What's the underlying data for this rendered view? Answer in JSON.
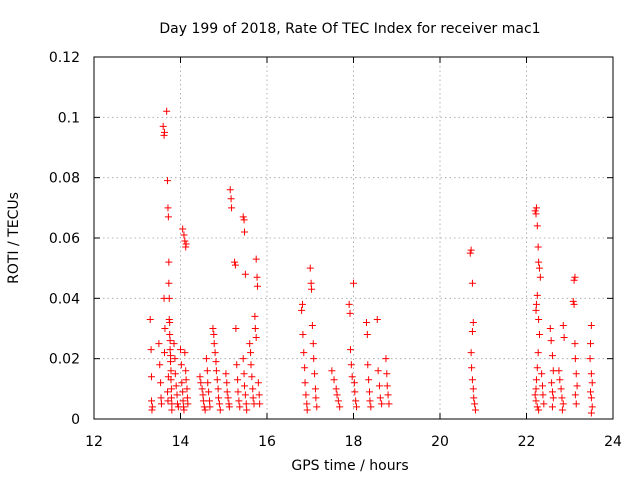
{
  "chart_data": {
    "type": "scatter",
    "title": "Day 199 of 2018, Rate Of TEC Index for receiver mac1",
    "xlabel": "GPS time / hours",
    "ylabel": "ROTI / TECUs",
    "xlim": [
      12,
      24
    ],
    "ylim": [
      0,
      0.12
    ],
    "grid": true,
    "marker": "plus",
    "color": "#ff0000",
    "x_ticks": [
      12,
      14,
      16,
      18,
      20,
      22,
      24
    ],
    "y_ticks": [
      0,
      0.02,
      0.04,
      0.06,
      0.08,
      0.1,
      0.12
    ],
    "x_tick_labels": [
      "12",
      "14",
      "16",
      "18",
      "20",
      "22",
      "24"
    ],
    "y_tick_labels": [
      "0",
      "0.02",
      "0.04",
      "0.06",
      "0.08",
      "0.1",
      "0.12"
    ],
    "series": [
      {
        "name": "ROTI",
        "points": [
          [
            13.3,
            0.033
          ],
          [
            13.32,
            0.023
          ],
          [
            13.33,
            0.014
          ],
          [
            13.33,
            0.006
          ],
          [
            13.35,
            0.004
          ],
          [
            13.34,
            0.003
          ],
          [
            13.5,
            0.025
          ],
          [
            13.52,
            0.018
          ],
          [
            13.54,
            0.012
          ],
          [
            13.55,
            0.007
          ],
          [
            13.56,
            0.005
          ],
          [
            13.6,
            0.097
          ],
          [
            13.62,
            0.094
          ],
          [
            13.63,
            0.095
          ],
          [
            13.62,
            0.04
          ],
          [
            13.64,
            0.03
          ],
          [
            13.63,
            0.022
          ],
          [
            13.68,
            0.102
          ],
          [
            13.7,
            0.079
          ],
          [
            13.71,
            0.07
          ],
          [
            13.72,
            0.067
          ],
          [
            13.73,
            0.052
          ],
          [
            13.73,
            0.045
          ],
          [
            13.74,
            0.04
          ],
          [
            13.74,
            0.033
          ],
          [
            13.75,
            0.032
          ],
          [
            13.75,
            0.028
          ],
          [
            13.76,
            0.026
          ],
          [
            13.76,
            0.023
          ],
          [
            13.77,
            0.021
          ],
          [
            13.77,
            0.019
          ],
          [
            13.78,
            0.016
          ],
          [
            13.78,
            0.013
          ],
          [
            13.79,
            0.01
          ],
          [
            13.79,
            0.007
          ],
          [
            13.8,
            0.005
          ],
          [
            13.8,
            0.003
          ],
          [
            13.72,
            0.014
          ],
          [
            13.7,
            0.009
          ],
          [
            13.71,
            0.006
          ],
          [
            13.85,
            0.025
          ],
          [
            13.87,
            0.02
          ],
          [
            13.88,
            0.015
          ],
          [
            13.9,
            0.011
          ],
          [
            13.92,
            0.008
          ],
          [
            13.93,
            0.005
          ],
          [
            13.95,
            0.004
          ],
          [
            14.0,
            0.023
          ],
          [
            14.02,
            0.018
          ],
          [
            14.03,
            0.012
          ],
          [
            14.05,
            0.009
          ],
          [
            14.06,
            0.006
          ],
          [
            14.07,
            0.004
          ],
          [
            14.08,
            0.003
          ],
          [
            14.05,
            0.063
          ],
          [
            14.08,
            0.061
          ],
          [
            14.1,
            0.059
          ],
          [
            14.12,
            0.057
          ],
          [
            14.13,
            0.058
          ],
          [
            14.1,
            0.022
          ],
          [
            14.12,
            0.016
          ],
          [
            14.13,
            0.013
          ],
          [
            14.15,
            0.01
          ],
          [
            14.16,
            0.007
          ],
          [
            14.17,
            0.005
          ],
          [
            14.45,
            0.014
          ],
          [
            14.47,
            0.012
          ],
          [
            14.5,
            0.01
          ],
          [
            14.52,
            0.008
          ],
          [
            14.53,
            0.006
          ],
          [
            14.55,
            0.004
          ],
          [
            14.57,
            0.003
          ],
          [
            14.6,
            0.02
          ],
          [
            14.62,
            0.016
          ],
          [
            14.63,
            0.012
          ],
          [
            14.65,
            0.009
          ],
          [
            14.67,
            0.006
          ],
          [
            14.68,
            0.004
          ],
          [
            14.75,
            0.03
          ],
          [
            14.77,
            0.028
          ],
          [
            14.78,
            0.025
          ],
          [
            14.8,
            0.022
          ],
          [
            14.82,
            0.019
          ],
          [
            14.83,
            0.016
          ],
          [
            14.85,
            0.013
          ],
          [
            14.87,
            0.01
          ],
          [
            14.88,
            0.007
          ],
          [
            14.9,
            0.005
          ],
          [
            14.92,
            0.003
          ],
          [
            15.05,
            0.015
          ],
          [
            15.07,
            0.012
          ],
          [
            15.08,
            0.009
          ],
          [
            15.1,
            0.007
          ],
          [
            15.12,
            0.005
          ],
          [
            15.13,
            0.004
          ],
          [
            15.15,
            0.076
          ],
          [
            15.17,
            0.073
          ],
          [
            15.18,
            0.07
          ],
          [
            15.25,
            0.052
          ],
          [
            15.27,
            0.051
          ],
          [
            15.28,
            0.03
          ],
          [
            15.3,
            0.018
          ],
          [
            15.32,
            0.013
          ],
          [
            15.33,
            0.009
          ],
          [
            15.35,
            0.006
          ],
          [
            15.37,
            0.004
          ],
          [
            15.45,
            0.067
          ],
          [
            15.47,
            0.066
          ],
          [
            15.48,
            0.062
          ],
          [
            15.5,
            0.048
          ],
          [
            15.45,
            0.02
          ],
          [
            15.47,
            0.015
          ],
          [
            15.48,
            0.011
          ],
          [
            15.5,
            0.008
          ],
          [
            15.52,
            0.005
          ],
          [
            15.53,
            0.003
          ],
          [
            15.6,
            0.025
          ],
          [
            15.62,
            0.022
          ],
          [
            15.63,
            0.018
          ],
          [
            15.65,
            0.014
          ],
          [
            15.67,
            0.01
          ],
          [
            15.68,
            0.007
          ],
          [
            15.7,
            0.005
          ],
          [
            15.75,
            0.053
          ],
          [
            15.77,
            0.047
          ],
          [
            15.78,
            0.044
          ],
          [
            15.72,
            0.034
          ],
          [
            15.73,
            0.03
          ],
          [
            15.75,
            0.027
          ],
          [
            15.8,
            0.012
          ],
          [
            15.82,
            0.008
          ],
          [
            15.83,
            0.005
          ],
          [
            16.8,
            0.036
          ],
          [
            16.82,
            0.038
          ],
          [
            16.83,
            0.028
          ],
          [
            16.85,
            0.022
          ],
          [
            16.87,
            0.017
          ],
          [
            16.88,
            0.012
          ],
          [
            16.9,
            0.008
          ],
          [
            16.92,
            0.005
          ],
          [
            16.93,
            0.003
          ],
          [
            17.0,
            0.05
          ],
          [
            17.02,
            0.045
          ],
          [
            17.03,
            0.043
          ],
          [
            17.05,
            0.031
          ],
          [
            17.07,
            0.025
          ],
          [
            17.08,
            0.02
          ],
          [
            17.1,
            0.015
          ],
          [
            17.12,
            0.01
          ],
          [
            17.13,
            0.007
          ],
          [
            17.15,
            0.004
          ],
          [
            17.5,
            0.016
          ],
          [
            17.55,
            0.013
          ],
          [
            17.6,
            0.01
          ],
          [
            17.62,
            0.008
          ],
          [
            17.65,
            0.006
          ],
          [
            17.68,
            0.004
          ],
          [
            17.9,
            0.038
          ],
          [
            17.92,
            0.035
          ],
          [
            17.93,
            0.023
          ],
          [
            17.95,
            0.018
          ],
          [
            17.97,
            0.014
          ],
          [
            18.0,
            0.045
          ],
          [
            18.02,
            0.012
          ],
          [
            18.03,
            0.009
          ],
          [
            18.05,
            0.006
          ],
          [
            18.07,
            0.004
          ],
          [
            18.3,
            0.032
          ],
          [
            18.32,
            0.028
          ],
          [
            18.33,
            0.018
          ],
          [
            18.35,
            0.013
          ],
          [
            18.37,
            0.009
          ],
          [
            18.38,
            0.006
          ],
          [
            18.4,
            0.004
          ],
          [
            18.55,
            0.033
          ],
          [
            18.57,
            0.016
          ],
          [
            18.6,
            0.011
          ],
          [
            18.62,
            0.007
          ],
          [
            18.65,
            0.005
          ],
          [
            18.75,
            0.02
          ],
          [
            18.77,
            0.015
          ],
          [
            18.78,
            0.011
          ],
          [
            18.8,
            0.008
          ],
          [
            18.82,
            0.005
          ],
          [
            20.7,
            0.055
          ],
          [
            20.72,
            0.056
          ],
          [
            20.75,
            0.045
          ],
          [
            20.77,
            0.032
          ],
          [
            20.75,
            0.029
          ],
          [
            20.72,
            0.022
          ],
          [
            20.73,
            0.017
          ],
          [
            20.75,
            0.013
          ],
          [
            20.77,
            0.01
          ],
          [
            20.78,
            0.007
          ],
          [
            20.8,
            0.005
          ],
          [
            20.82,
            0.003
          ],
          [
            22.2,
            0.069
          ],
          [
            22.22,
            0.068
          ],
          [
            22.23,
            0.07
          ],
          [
            22.25,
            0.064
          ],
          [
            22.27,
            0.057
          ],
          [
            22.28,
            0.052
          ],
          [
            22.3,
            0.05
          ],
          [
            22.32,
            0.047
          ],
          [
            22.25,
            0.041
          ],
          [
            22.23,
            0.038
          ],
          [
            22.22,
            0.036
          ],
          [
            22.28,
            0.033
          ],
          [
            22.3,
            0.028
          ],
          [
            22.27,
            0.022
          ],
          [
            22.25,
            0.017
          ],
          [
            22.23,
            0.013
          ],
          [
            22.22,
            0.01
          ],
          [
            22.2,
            0.008
          ],
          [
            22.22,
            0.006
          ],
          [
            22.25,
            0.004
          ],
          [
            22.28,
            0.003
          ],
          [
            22.35,
            0.015
          ],
          [
            22.37,
            0.011
          ],
          [
            22.38,
            0.008
          ],
          [
            22.4,
            0.005
          ],
          [
            22.55,
            0.03
          ],
          [
            22.57,
            0.026
          ],
          [
            22.6,
            0.021
          ],
          [
            22.62,
            0.016
          ],
          [
            22.58,
            0.012
          ],
          [
            22.6,
            0.009
          ],
          [
            22.62,
            0.007
          ],
          [
            22.6,
            0.004
          ],
          [
            22.75,
            0.016
          ],
          [
            22.77,
            0.013
          ],
          [
            22.8,
            0.01
          ],
          [
            22.82,
            0.007
          ],
          [
            22.85,
            0.005
          ],
          [
            22.83,
            0.003
          ],
          [
            22.85,
            0.031
          ],
          [
            22.87,
            0.027
          ],
          [
            23.1,
            0.046
          ],
          [
            23.12,
            0.047
          ],
          [
            23.08,
            0.039
          ],
          [
            23.1,
            0.038
          ],
          [
            23.12,
            0.025
          ],
          [
            23.13,
            0.02
          ],
          [
            23.15,
            0.015
          ],
          [
            23.17,
            0.011
          ],
          [
            23.13,
            0.008
          ],
          [
            23.15,
            0.005
          ],
          [
            23.5,
            0.031
          ],
          [
            23.48,
            0.025
          ],
          [
            23.47,
            0.02
          ],
          [
            23.5,
            0.015
          ],
          [
            23.52,
            0.012
          ],
          [
            23.48,
            0.009
          ],
          [
            23.5,
            0.007
          ],
          [
            23.52,
            0.004
          ],
          [
            23.5,
            0.002
          ]
        ]
      }
    ]
  }
}
